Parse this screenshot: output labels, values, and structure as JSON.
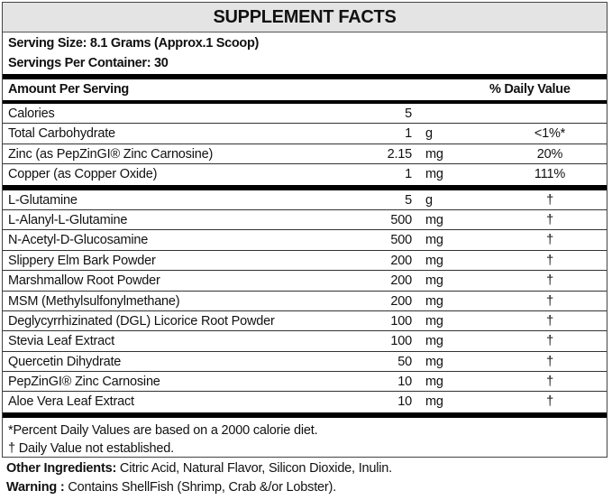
{
  "title": "SUPPLEMENT FACTS",
  "serving_size": "Serving Size: 8.1 Grams (Approx.1 Scoop)",
  "servings_per_container": "Servings Per Container: 30",
  "header": {
    "amount": "Amount Per Serving",
    "dv": "% Daily Value"
  },
  "nutrients": [
    {
      "name": "Calories",
      "amount": "5",
      "unit": "",
      "dv": ""
    },
    {
      "name": "Total Carbohydrate",
      "amount": "1",
      "unit": "g",
      "dv": "<1%*"
    },
    {
      "name": "Zinc (as PepZinGI® Zinc Carnosine)",
      "amount": "2.15",
      "unit": "mg",
      "dv": "20%"
    },
    {
      "name": "Copper (as Copper Oxide)",
      "amount": "1",
      "unit": "mg",
      "dv": "111%"
    }
  ],
  "ingredients": [
    {
      "name": "L-Glutamine",
      "amount": "5",
      "unit": "g",
      "dv": "†"
    },
    {
      "name": "L-Alanyl-L-Glutamine",
      "amount": "500",
      "unit": "mg",
      "dv": "†"
    },
    {
      "name": "N-Acetyl-D-Glucosamine",
      "amount": "500",
      "unit": "mg",
      "dv": "†"
    },
    {
      "name": "Slippery Elm Bark Powder",
      "amount": "200",
      "unit": "mg",
      "dv": "†"
    },
    {
      "name": "Marshmallow Root Powder",
      "amount": "200",
      "unit": "mg",
      "dv": "†"
    },
    {
      "name": "MSM (Methylsulfonylmethane)",
      "amount": "200",
      "unit": "mg",
      "dv": "†"
    },
    {
      "name": "Deglycyrrhizinated (DGL) Licorice Root Powder",
      "amount": "100",
      "unit": "mg",
      "dv": "†"
    },
    {
      "name": "Stevia Leaf Extract",
      "amount": "100",
      "unit": "mg",
      "dv": "†"
    },
    {
      "name": "Quercetin Dihydrate",
      "amount": "50",
      "unit": "mg",
      "dv": "†"
    },
    {
      "name": "PepZinGI® Zinc Carnosine",
      "amount": "10",
      "unit": "mg",
      "dv": "†"
    },
    {
      "name": "Aloe Vera Leaf Extract",
      "amount": "10",
      "unit": "mg",
      "dv": "†"
    }
  ],
  "footnotes": [
    "*Percent Daily Values are based on a 2000 calorie diet.",
    "† Daily Value not established."
  ],
  "other_ingredients": {
    "label": "Other Ingredients:",
    "text": " Citric Acid, Natural Flavor, Silicon Dioxide, Inulin."
  },
  "warning": {
    "label": "Warning :",
    "text": " Contains ShellFish (Shrimp, Crab &/or Lobster)."
  }
}
